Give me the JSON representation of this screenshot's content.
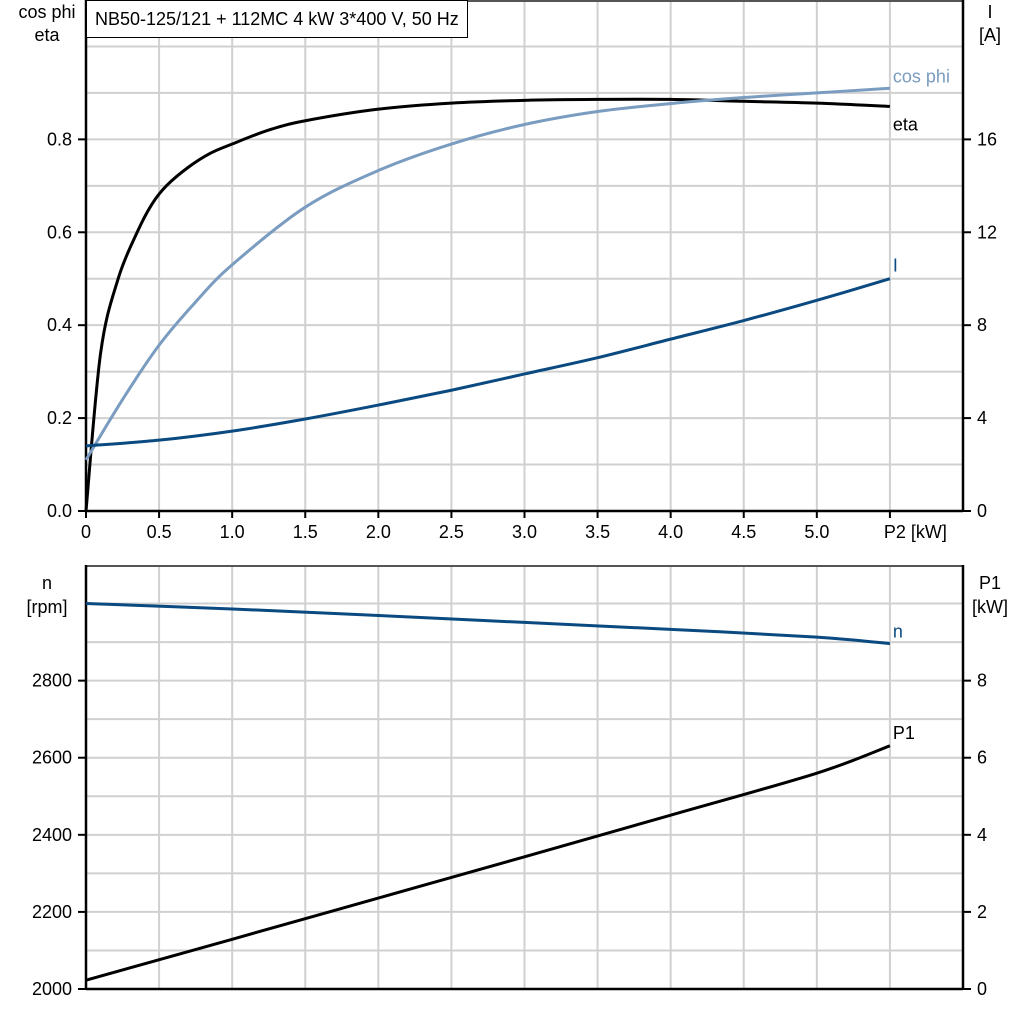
{
  "chart_data": [
    {
      "type": "line",
      "title": "NB50-125/121 + 112MC   4 kW   3*400 V, 50 Hz",
      "xlabel": "P2 [kW]",
      "xlim": [
        0,
        6
      ],
      "x_ticks": [
        "0",
        "0.5",
        "1.0",
        "1.5",
        "2.0",
        "2.5",
        "3.0",
        "3.5",
        "4.0",
        "4.5",
        "5.0"
      ],
      "ylabel_left": [
        "cos phi",
        "eta"
      ],
      "ylim_left": [
        0,
        1.1
      ],
      "y_ticks_left": [
        "0.0",
        "0.2",
        "0.4",
        "0.6",
        "0.8"
      ],
      "ylabel_right": [
        "I",
        "[A]"
      ],
      "ylim_right": [
        0,
        22
      ],
      "y_ticks_right": [
        "0",
        "4",
        "8",
        "12",
        "16"
      ],
      "grid": true,
      "series": [
        {
          "name": "eta",
          "axis": "left",
          "color": "#000000",
          "x": [
            0,
            0.1,
            0.22,
            0.35,
            0.45,
            0.55,
            0.7,
            0.85,
            1.0,
            1.25,
            1.5,
            2.0,
            2.5,
            3.0,
            3.5,
            4.0,
            4.5,
            5.0,
            5.5
          ],
          "y": [
            0,
            0.34,
            0.5,
            0.6,
            0.66,
            0.7,
            0.74,
            0.77,
            0.79,
            0.82,
            0.84,
            0.865,
            0.878,
            0.884,
            0.886,
            0.886,
            0.882,
            0.878,
            0.871
          ]
        },
        {
          "name": "cos phi",
          "axis": "left",
          "color": "#7a9cc0",
          "x": [
            0,
            0.25,
            0.5,
            0.75,
            1.0,
            1.5,
            2.0,
            2.5,
            3.0,
            3.5,
            4.0,
            4.5,
            5.0,
            5.5
          ],
          "y": [
            0.11,
            0.24,
            0.357,
            0.45,
            0.53,
            0.654,
            0.733,
            0.79,
            0.832,
            0.86,
            0.877,
            0.89,
            0.9,
            0.91
          ]
        },
        {
          "name": "I",
          "axis": "right",
          "color": "#0a4a80",
          "x": [
            0,
            0.5,
            1.0,
            1.5,
            2.0,
            2.5,
            3.0,
            3.5,
            4.0,
            4.5,
            5.0,
            5.5
          ],
          "y": [
            2.8,
            3.05,
            3.44,
            3.96,
            4.56,
            5.2,
            5.9,
            6.6,
            7.4,
            8.2,
            9.07,
            10.0
          ]
        }
      ]
    },
    {
      "type": "line",
      "xlim": [
        0,
        6
      ],
      "ylabel_left": [
        "n",
        "[rpm]"
      ],
      "ylim_left": [
        2000,
        3100
      ],
      "y_ticks_left": [
        "2000",
        "2200",
        "2400",
        "2600",
        "2800"
      ],
      "ylabel_right": [
        "P1",
        "[kW]"
      ],
      "ylim_right": [
        0,
        11
      ],
      "y_ticks_right": [
        "0",
        "2",
        "4",
        "6",
        "8"
      ],
      "grid": true,
      "series": [
        {
          "name": "n",
          "axis": "left",
          "color": "#0a4a80",
          "x": [
            0,
            1,
            2,
            3,
            4,
            5,
            5.5
          ],
          "y": [
            3000,
            2986,
            2969,
            2951,
            2933,
            2913,
            2896
          ]
        },
        {
          "name": "P1",
          "axis": "right",
          "color": "#000000",
          "x": [
            0,
            1,
            2,
            3,
            4,
            5,
            5.5
          ],
          "y": [
            0.23,
            1.29,
            2.36,
            3.43,
            4.51,
            5.6,
            6.31
          ]
        }
      ]
    }
  ]
}
